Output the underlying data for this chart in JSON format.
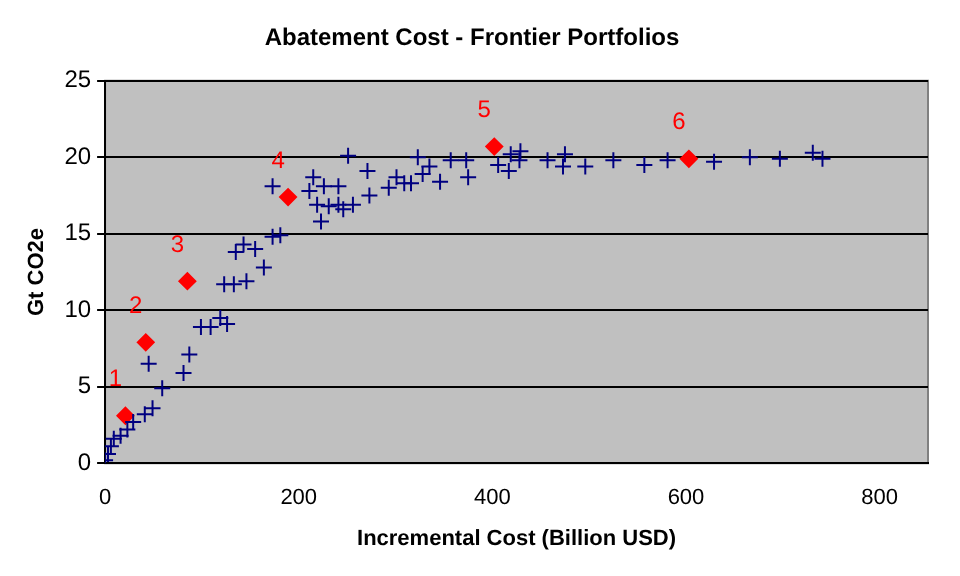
{
  "chart_data": {
    "type": "scatter",
    "title": "Abatement Cost - Frontier Portfolios",
    "xlabel": "Incremental Cost (Billion USD)",
    "ylabel": "Gt CO2e",
    "xlim": [
      0,
      850
    ],
    "xticks": [
      0,
      200,
      400,
      600,
      800
    ],
    "ylim": [
      0,
      25
    ],
    "yticks": [
      0,
      5,
      10,
      15,
      20,
      25
    ],
    "grid": "y",
    "legend": false,
    "series": [
      {
        "color": "#000080",
        "marker": "cross",
        "x": [
          0,
          3,
          6,
          9,
          16,
          23,
          29,
          41,
          49,
          59,
          45,
          81,
          87,
          99,
          109,
          119,
          126,
          123,
          133,
          146,
          135,
          143,
          155,
          164,
          173,
          181,
          173,
          211,
          215,
          226,
          241,
          219,
          231,
          241,
          256,
          246,
          223,
          251,
          271,
          273,
          293,
          301,
          309,
          316,
          323,
          328,
          335,
          346,
          357,
          373,
          375,
          406,
          419,
          429,
          428,
          417,
          457,
          475,
          473,
          496,
          525,
          557,
          581,
          629,
          666,
          697,
          731,
          741
        ],
        "values": [
          0.2,
          0.6,
          1.1,
          1.6,
          1.8,
          2.2,
          2.7,
          3.2,
          3.6,
          4.9,
          6.5,
          5.9,
          7.1,
          8.9,
          8.9,
          9.5,
          9.1,
          11.7,
          11.7,
          11.9,
          13.8,
          14.3,
          14,
          12.8,
          14.8,
          14.9,
          18.1,
          17.8,
          18.7,
          18.1,
          18.1,
          16.9,
          16.8,
          16.9,
          16.9,
          16.6,
          15.8,
          20.1,
          19.1,
          17.5,
          18,
          18.7,
          18.3,
          18.3,
          20,
          18.9,
          19.4,
          18.4,
          19.8,
          19.8,
          18.7,
          19.5,
          20.2,
          20.4,
          19.8,
          19.1,
          19.8,
          20.2,
          19.4,
          19.4,
          19.8,
          19.5,
          19.8,
          19.7,
          20,
          19.9,
          20.3,
          19.9
        ]
      },
      {
        "color": "#ff0000",
        "marker": "diamond",
        "x": [
          21,
          42,
          85,
          189,
          402,
          603
        ],
        "values": [
          3.1,
          7.9,
          11.9,
          17.4,
          20.7,
          19.9
        ]
      }
    ],
    "annotations": [
      {
        "text": "1",
        "x": 21,
        "y": 3.1
      },
      {
        "text": "2",
        "x": 42,
        "y": 7.9
      },
      {
        "text": "3",
        "x": 85,
        "y": 11.9
      },
      {
        "text": "4",
        "x": 189,
        "y": 17.4
      },
      {
        "text": "5",
        "x": 402,
        "y": 20.7
      },
      {
        "text": "6",
        "x": 603,
        "y": 19.9
      }
    ]
  }
}
